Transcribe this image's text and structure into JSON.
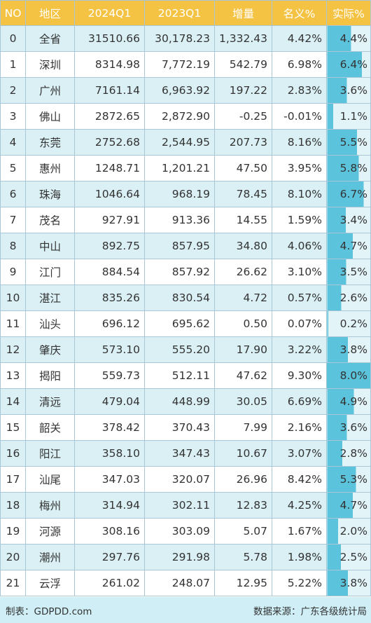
{
  "headers": [
    "NO",
    "地区",
    "2024Q1",
    "2023Q1",
    "增量",
    "名义%",
    "实际%"
  ],
  "rows": [
    {
      "no": "0",
      "region": "全省",
      "q2024": "31510.66",
      "q2023": "30,178.23",
      "delta": "1,332.43",
      "nominal": "4.42%",
      "real": "4.4%",
      "real_value": 4.4
    },
    {
      "no": "1",
      "region": "深圳",
      "q2024": "8314.98",
      "q2023": "7,772.19",
      "delta": "542.79",
      "nominal": "6.98%",
      "real": "6.4%",
      "real_value": 6.4
    },
    {
      "no": "2",
      "region": "广州",
      "q2024": "7161.14",
      "q2023": "6,963.92",
      "delta": "197.22",
      "nominal": "2.83%",
      "real": "3.6%",
      "real_value": 3.6
    },
    {
      "no": "3",
      "region": "佛山",
      "q2024": "2872.65",
      "q2023": "2,872.90",
      "delta": "-0.25",
      "nominal": "-0.01%",
      "real": "1.1%",
      "real_value": 1.1
    },
    {
      "no": "4",
      "region": "东莞",
      "q2024": "2752.68",
      "q2023": "2,544.95",
      "delta": "207.73",
      "nominal": "8.16%",
      "real": "5.5%",
      "real_value": 5.5
    },
    {
      "no": "5",
      "region": "惠州",
      "q2024": "1248.71",
      "q2023": "1,201.21",
      "delta": "47.50",
      "nominal": "3.95%",
      "real": "5.8%",
      "real_value": 5.8
    },
    {
      "no": "6",
      "region": "珠海",
      "q2024": "1046.64",
      "q2023": "968.19",
      "delta": "78.45",
      "nominal": "8.10%",
      "real": "6.7%",
      "real_value": 6.7
    },
    {
      "no": "7",
      "region": "茂名",
      "q2024": "927.91",
      "q2023": "913.36",
      "delta": "14.55",
      "nominal": "1.59%",
      "real": "3.4%",
      "real_value": 3.4
    },
    {
      "no": "8",
      "region": "中山",
      "q2024": "892.75",
      "q2023": "857.95",
      "delta": "34.80",
      "nominal": "4.06%",
      "real": "4.7%",
      "real_value": 4.7
    },
    {
      "no": "9",
      "region": "江门",
      "q2024": "884.54",
      "q2023": "857.92",
      "delta": "26.62",
      "nominal": "3.10%",
      "real": "3.5%",
      "real_value": 3.5
    },
    {
      "no": "10",
      "region": "湛江",
      "q2024": "835.26",
      "q2023": "830.54",
      "delta": "4.72",
      "nominal": "0.57%",
      "real": "2.6%",
      "real_value": 2.6
    },
    {
      "no": "11",
      "region": "汕头",
      "q2024": "696.12",
      "q2023": "695.62",
      "delta": "0.50",
      "nominal": "0.07%",
      "real": "0.2%",
      "real_value": 0.2
    },
    {
      "no": "12",
      "region": "肇庆",
      "q2024": "573.10",
      "q2023": "555.20",
      "delta": "17.90",
      "nominal": "3.22%",
      "real": "3.8%",
      "real_value": 3.8
    },
    {
      "no": "13",
      "region": "揭阳",
      "q2024": "559.73",
      "q2023": "512.11",
      "delta": "47.62",
      "nominal": "9.30%",
      "real": "8.0%",
      "real_value": 8.0
    },
    {
      "no": "14",
      "region": "清远",
      "q2024": "479.04",
      "q2023": "448.99",
      "delta": "30.05",
      "nominal": "6.69%",
      "real": "4.9%",
      "real_value": 4.9
    },
    {
      "no": "15",
      "region": "韶关",
      "q2024": "378.42",
      "q2023": "370.43",
      "delta": "7.99",
      "nominal": "2.16%",
      "real": "3.6%",
      "real_value": 3.6
    },
    {
      "no": "16",
      "region": "阳江",
      "q2024": "358.10",
      "q2023": "347.43",
      "delta": "10.67",
      "nominal": "3.07%",
      "real": "2.8%",
      "real_value": 2.8
    },
    {
      "no": "17",
      "region": "汕尾",
      "q2024": "347.03",
      "q2023": "320.07",
      "delta": "26.96",
      "nominal": "8.42%",
      "real": "5.3%",
      "real_value": 5.3
    },
    {
      "no": "18",
      "region": "梅州",
      "q2024": "314.94",
      "q2023": "302.11",
      "delta": "12.83",
      "nominal": "4.25%",
      "real": "4.7%",
      "real_value": 4.7
    },
    {
      "no": "19",
      "region": "河源",
      "q2024": "308.16",
      "q2023": "303.09",
      "delta": "5.07",
      "nominal": "1.67%",
      "real": "2.0%",
      "real_value": 2.0
    },
    {
      "no": "20",
      "region": "潮州",
      "q2024": "297.76",
      "q2023": "291.98",
      "delta": "5.78",
      "nominal": "1.98%",
      "real": "2.5%",
      "real_value": 2.5
    },
    {
      "no": "21",
      "region": "云浮",
      "q2024": "261.02",
      "q2023": "248.07",
      "delta": "12.95",
      "nominal": "5.22%",
      "real": "3.8%",
      "real_value": 3.8
    }
  ],
  "colors": {
    "header_bg": "#f5c344",
    "header_text": "#ffffff",
    "row_alt_bg": "#daf0f5",
    "bar_light": "#e3f4f9",
    "bar_dark": "#5cc3dc",
    "footer_bg": "#cfeef6"
  },
  "footer": {
    "left": "制表：GDPDD.com",
    "right": "数据来源：广东各级统计局"
  }
}
